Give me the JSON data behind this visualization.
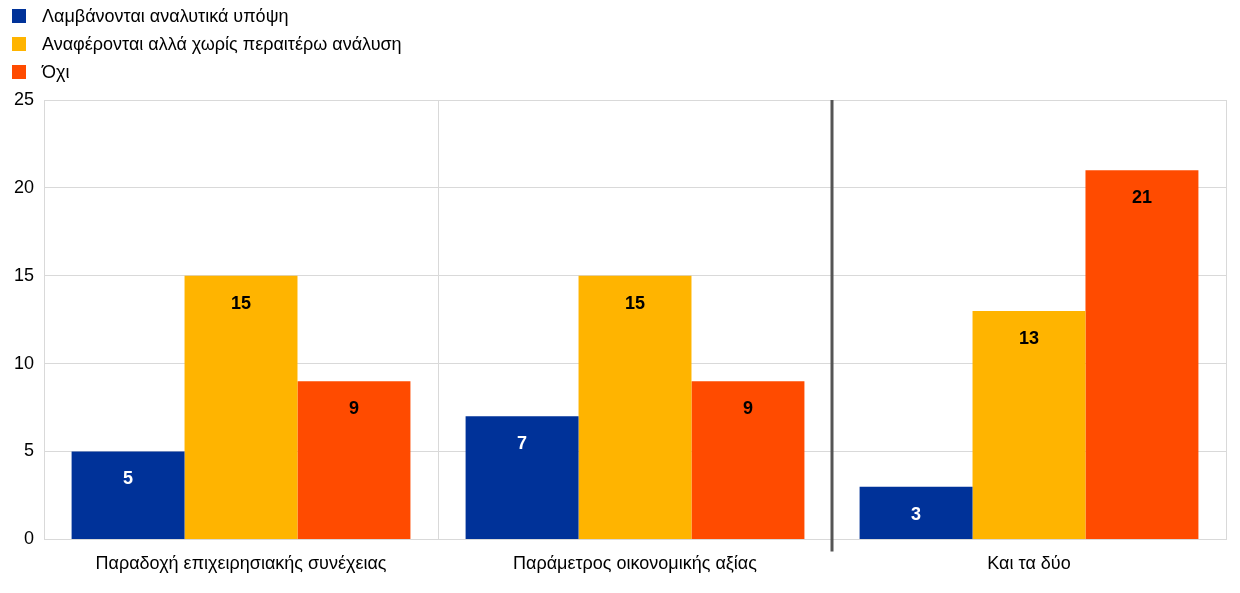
{
  "chart_data": {
    "type": "bar",
    "categories": [
      "Παραδοχή επιχειρησιακής συνέχειας",
      "Παράμετρος οικονομικής αξίας",
      "Και τα δύο"
    ],
    "series": [
      {
        "name": "Λαμβάνονται αναλυτικά υπόψη",
        "color": "#003299",
        "values": [
          5,
          7,
          3
        ]
      },
      {
        "name": "Αναφέρονται αλλά χωρίς περαιτέρω ανάλυση",
        "color": "#ffb400",
        "values": [
          15,
          15,
          13
        ]
      },
      {
        "name": "Όχι",
        "color": "#ff4b00",
        "values": [
          9,
          9,
          21
        ]
      }
    ],
    "ref_lines": [
      {
        "axis": "x",
        "value": "Και τα δύο",
        "color": "#555555"
      }
    ],
    "ylim": [
      0,
      25
    ],
    "yticks": [
      0,
      5,
      10,
      15,
      20,
      25
    ],
    "grid": true,
    "legend": "top left",
    "data_labels": true
  }
}
